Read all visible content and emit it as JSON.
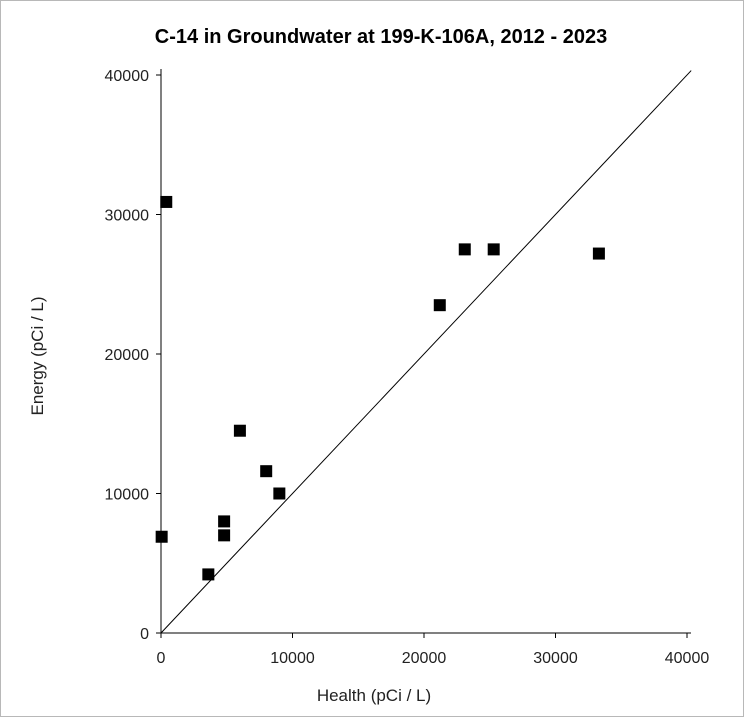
{
  "chart_data": {
    "type": "scatter",
    "title": "C-14 in Groundwater at 199-K-106A, 2012 - 2023",
    "xlabel": "Health (pCi / L)",
    "ylabel": "Energy (pCi / L)",
    "xlim": [
      0,
      40000
    ],
    "ylim": [
      0,
      40000
    ],
    "x_ticks": [
      "0",
      "10000",
      "20000",
      "30000",
      "40000"
    ],
    "y_ticks": [
      "0",
      "10000",
      "20000",
      "30000",
      "40000"
    ],
    "grid": false,
    "reference_line": "y = x",
    "marker_color": "#000000",
    "points": [
      {
        "x": 50,
        "y": 6900
      },
      {
        "x": 400,
        "y": 30900
      },
      {
        "x": 3600,
        "y": 4200
      },
      {
        "x": 4800,
        "y": 7000
      },
      {
        "x": 4800,
        "y": 8000
      },
      {
        "x": 6000,
        "y": 14500
      },
      {
        "x": 8000,
        "y": 11600
      },
      {
        "x": 9000,
        "y": 10000
      },
      {
        "x": 21200,
        "y": 23500
      },
      {
        "x": 23100,
        "y": 27500
      },
      {
        "x": 25300,
        "y": 27500
      },
      {
        "x": 33300,
        "y": 27200
      }
    ]
  }
}
